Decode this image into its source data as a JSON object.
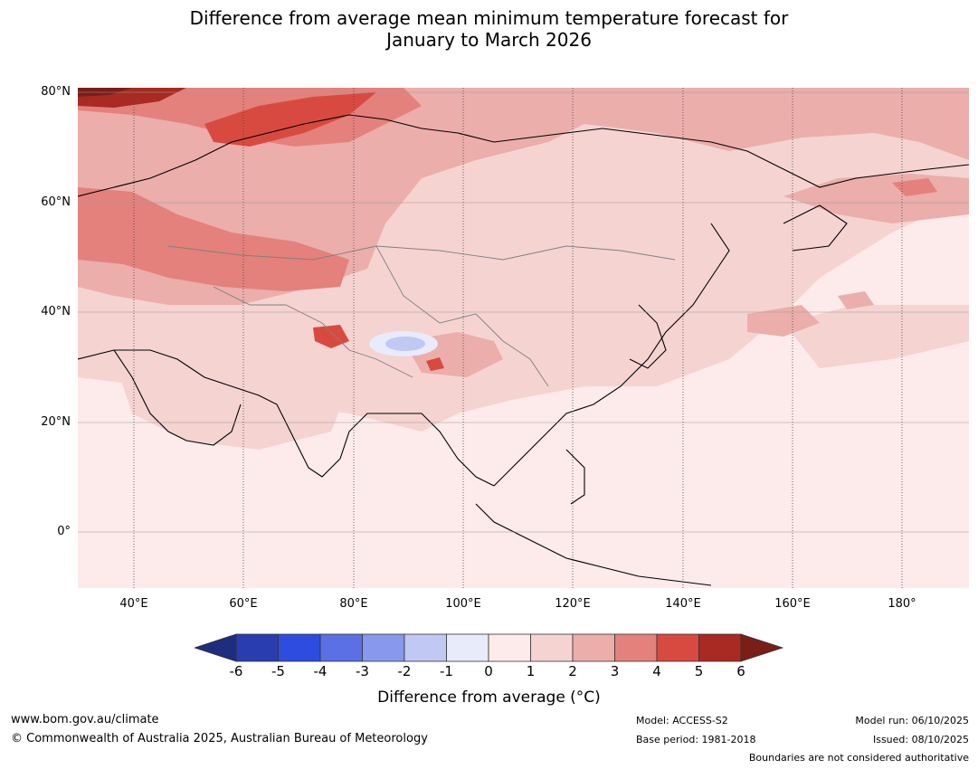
{
  "title": {
    "line1": "Difference from average mean minimum temperature forecast for",
    "line2": "January to March 2026"
  },
  "map": {
    "region": "Asia",
    "lat_labels": [
      "80°N",
      "60°N",
      "40°N",
      "20°N",
      "0°"
    ],
    "lon_labels": [
      "40°E",
      "60°E",
      "80°E",
      "100°E",
      "120°E",
      "140°E",
      "160°E",
      "180°"
    ]
  },
  "colorbar": {
    "ticks": [
      "-6",
      "-5",
      "-4",
      "-3",
      "-2",
      "-1",
      "0",
      "1",
      "2",
      "3",
      "4",
      "5",
      "6"
    ],
    "colors": [
      "#1e2d7e",
      "#2a3db0",
      "#2e4ce0",
      "#5a70e4",
      "#8898ec",
      "#c0c8f4",
      "#e8ebfa",
      "#fcebea",
      "#f5d3d1",
      "#ebaeab",
      "#e4817c",
      "#d84a40",
      "#a92a22",
      "#7a1e18"
    ],
    "label": "Difference from average (°C)"
  },
  "footer": {
    "url": "www.bom.gov.au/climate",
    "copyright": "© Commonwealth of Australia 2025, Australian Bureau of Meteorology",
    "model": "Model: ACCESS-S2",
    "base_period": "Base period: 1981-2018",
    "model_run": "Model run: 06/10/2025",
    "issued": "Issued: 08/10/2025",
    "disclaimer": "Boundaries are not considered authoritative"
  }
}
